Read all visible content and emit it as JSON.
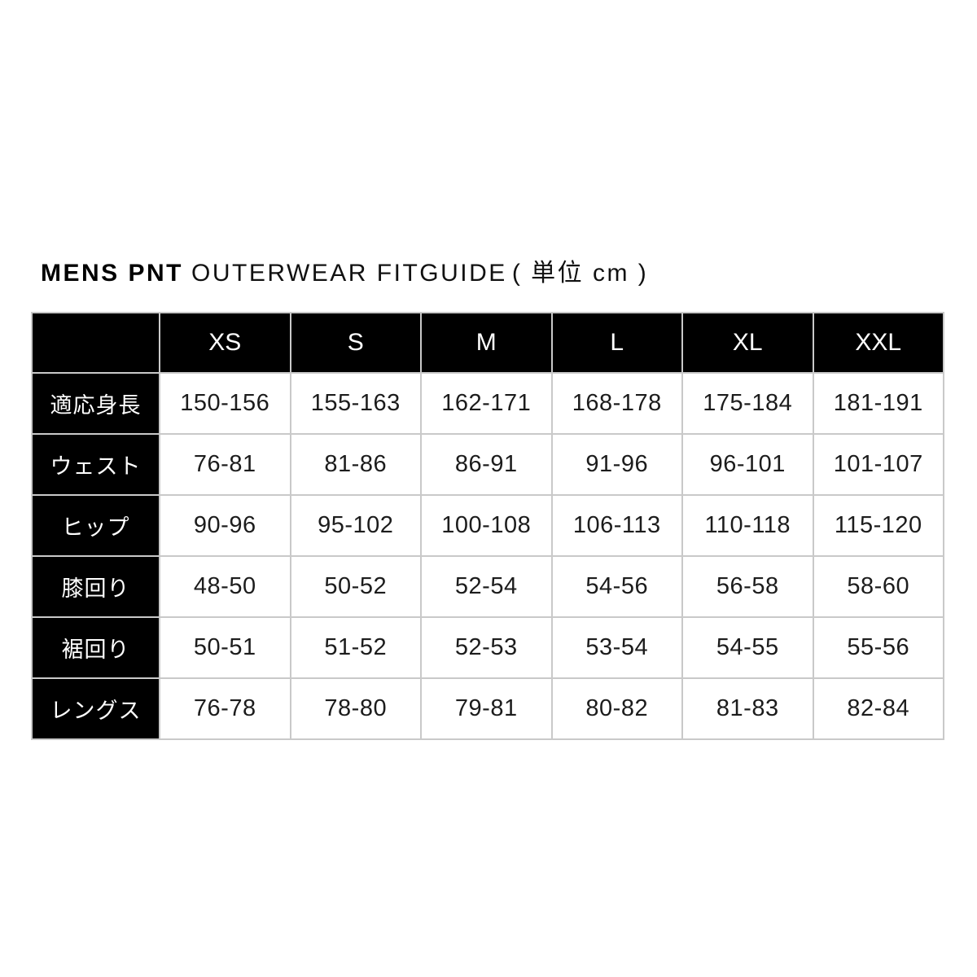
{
  "title": {
    "brand": "MENS PNT",
    "subtitle": "OUTERWEAR FITGUIDE",
    "unit": "( 単位 cm )"
  },
  "colors": {
    "header_bg": "#000000",
    "header_text": "#ffffff",
    "cell_bg": "#ffffff",
    "cell_text": "#1c1c1c",
    "grid": "#c9c9c9",
    "background": "#ffffff"
  },
  "chart_data": {
    "type": "table",
    "title": "MENS PNT OUTERWEAR FITGUIDE ( 単位 cm )",
    "unit": "cm",
    "columns": [
      "XS",
      "S",
      "M",
      "L",
      "XL",
      "XXL"
    ],
    "rows": [
      {
        "label": "適応身長",
        "values": [
          "150-156",
          "155-163",
          "162-171",
          "168-178",
          "175-184",
          "181-191"
        ]
      },
      {
        "label": "ウェスト",
        "values": [
          "76-81",
          "81-86",
          "86-91",
          "91-96",
          "96-101",
          "101-107"
        ]
      },
      {
        "label": "ヒップ",
        "values": [
          "90-96",
          "95-102",
          "100-108",
          "106-113",
          "110-118",
          "115-120"
        ]
      },
      {
        "label": "膝回り",
        "values": [
          "48-50",
          "50-52",
          "52-54",
          "54-56",
          "56-58",
          "58-60"
        ]
      },
      {
        "label": "裾回り",
        "values": [
          "50-51",
          "51-52",
          "52-53",
          "53-54",
          "54-55",
          "55-56"
        ]
      },
      {
        "label": "レングス",
        "values": [
          "76-78",
          "78-80",
          "79-81",
          "80-82",
          "81-83",
          "82-84"
        ]
      }
    ]
  }
}
